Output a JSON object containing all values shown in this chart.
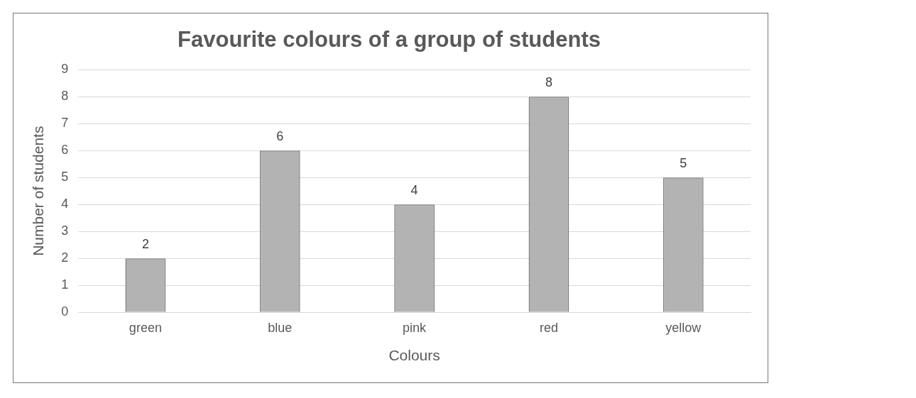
{
  "chart_data": {
    "type": "bar",
    "title": "Favourite colours of a group of students",
    "xlabel": "Colours",
    "ylabel": "Number of students",
    "categories": [
      "green",
      "blue",
      "pink",
      "red",
      "yellow"
    ],
    "values": [
      2,
      6,
      4,
      8,
      5
    ],
    "color": "#b3b3b3",
    "ylim": [
      0,
      9
    ],
    "yticks": [
      0,
      1,
      2,
      3,
      4,
      5,
      6,
      7,
      8,
      9
    ],
    "grid": "y",
    "legend": false,
    "data_labels": true
  }
}
